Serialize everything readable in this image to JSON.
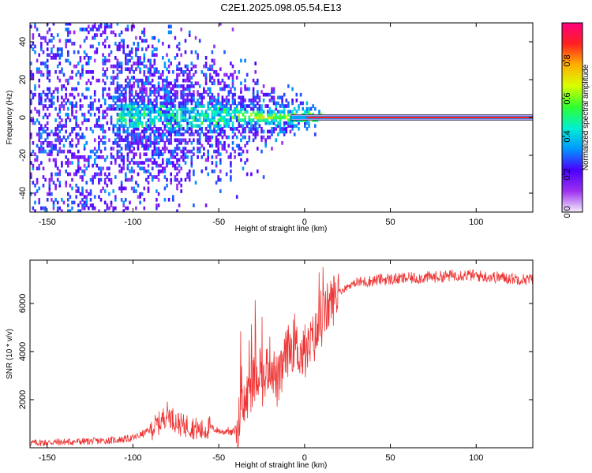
{
  "figure_title": "C2E1.2025.098.05.54.E13",
  "chart_data": [
    {
      "type": "heatmap",
      "title": "",
      "xlabel": "Height of straight line (km)",
      "ylabel": "Frequency (Hz)",
      "xlim": [
        -160,
        133
      ],
      "ylim": [
        -50,
        50
      ],
      "x_ticks": [
        -150,
        -100,
        -50,
        0,
        50,
        100
      ],
      "y_ticks": [
        -40,
        -20,
        0,
        20,
        40
      ],
      "colorbar": {
        "label": "Normalized spectral amplitude",
        "range": [
          0,
          1
        ],
        "ticks": [
          "0.0",
          "0.2",
          "0.4",
          "0.6",
          "0.8"
        ],
        "colors": [
          "#f4eefc",
          "#9c30f0",
          "#4b00ff",
          "#0096ff",
          "#00f0d0",
          "#30ff30",
          "#d8ff00",
          "#ffb000",
          "#ff2020",
          "#ff0080"
        ]
      },
      "features": [
        {
          "region_km": [
            -160,
            -110
          ],
          "frequency_spread_hz": [
            -50,
            50
          ],
          "amplitude": "low, scattered (purple)"
        },
        {
          "region_km": [
            -110,
            -40
          ],
          "frequency_spread_hz": [
            -10,
            10
          ],
          "amplitude": "medium (blue/cyan)"
        },
        {
          "region_km": [
            -40,
            10
          ],
          "frequency_spread_hz": [
            -4,
            3
          ],
          "amplitude": "medium-high, converging (yellow/red)"
        },
        {
          "region_km": [
            0,
            133
          ],
          "frequency_hz": 0,
          "amplitude": "high, constant narrow line (red)"
        }
      ],
      "grid": false
    },
    {
      "type": "line",
      "title": "",
      "xlabel": "Height of straight line (km)",
      "ylabel": "SNR (10 * v/v)",
      "xlim": [
        -160,
        133
      ],
      "ylim": [
        0,
        7800
      ],
      "x_ticks": [
        -150,
        -100,
        -50,
        0,
        50,
        100
      ],
      "y_ticks": [
        2000,
        4000,
        6000
      ],
      "color": "#ee3333",
      "series": [
        {
          "x": [
            -160,
            -150,
            -140,
            -130,
            -120,
            -110,
            -100,
            -95,
            -90,
            -85,
            -82,
            -80,
            -78,
            -75,
            -72,
            -70,
            -68,
            -65,
            -62,
            -60,
            -57,
            -55,
            -52,
            -50,
            -47,
            -45,
            -43,
            -41,
            -40,
            -38,
            -36,
            -34,
            -32,
            -30,
            -28,
            -26,
            -24,
            -22,
            -20,
            -18,
            -16,
            -14,
            -12,
            -10,
            -8,
            -6,
            -4,
            -2,
            0,
            2,
            4,
            6,
            8,
            10,
            12,
            14,
            16,
            18,
            20,
            22,
            24,
            26,
            28,
            30,
            32,
            35,
            40,
            45,
            50,
            55,
            60,
            65,
            70,
            75,
            80,
            85,
            90,
            95,
            100,
            105,
            110,
            115,
            120,
            125,
            130,
            133
          ],
          "y": [
            200,
            220,
            240,
            260,
            280,
            320,
            400,
            550,
            750,
            1000,
            1250,
            1450,
            1300,
            1100,
            950,
            900,
            950,
            850,
            750,
            700,
            800,
            850,
            750,
            700,
            650,
            750,
            600,
            700,
            900,
            1200,
            1600,
            2000,
            2400,
            2700,
            3000,
            3400,
            2600,
            3300,
            3600,
            3200,
            2700,
            2900,
            3600,
            4000,
            4200,
            4300,
            4100,
            3900,
            3800,
            4000,
            4400,
            4600,
            4900,
            5200,
            5600,
            5900,
            6100,
            6300,
            6450,
            6550,
            6650,
            6750,
            6800,
            6850,
            6880,
            6900,
            6950,
            7000,
            7000,
            7020,
            7050,
            7050,
            7080,
            7100,
            7120,
            7150,
            7200,
            7180,
            7150,
            7120,
            7100,
            7080,
            7050,
            7020,
            7000,
            7000
          ]
        }
      ],
      "grid": false
    }
  ]
}
